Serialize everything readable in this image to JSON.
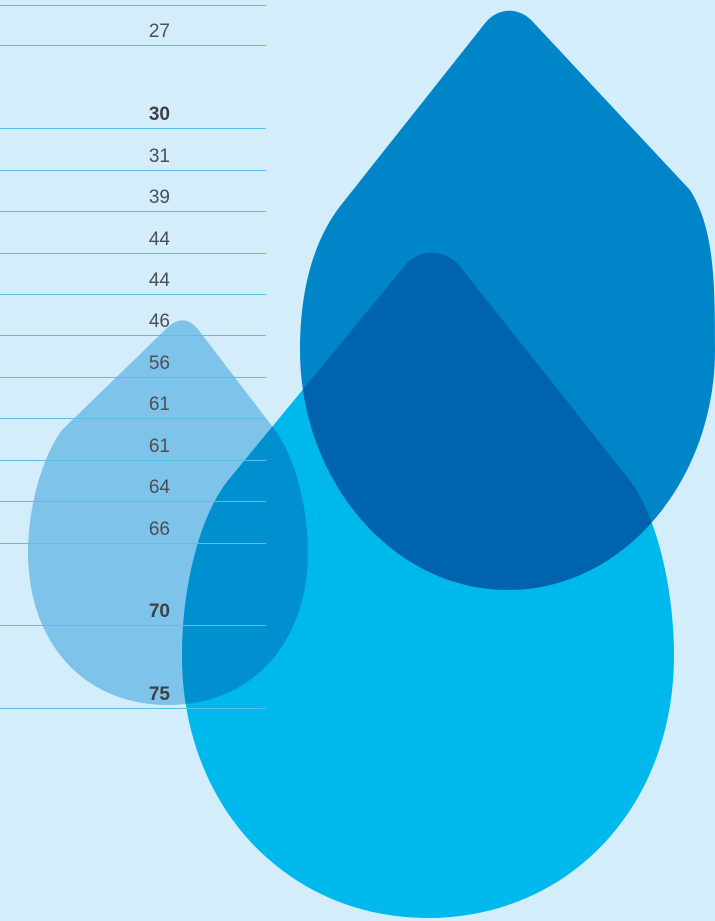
{
  "table": {
    "rows": [
      {
        "value": "27",
        "bold": false
      },
      {
        "value": "30",
        "bold": true
      },
      {
        "value": "31",
        "bold": false
      },
      {
        "value": "39",
        "bold": false
      },
      {
        "value": "44",
        "bold": false
      },
      {
        "value": "44",
        "bold": false
      },
      {
        "value": "46",
        "bold": false
      },
      {
        "value": "56",
        "bold": false
      },
      {
        "value": "61",
        "bold": false
      },
      {
        "value": "61",
        "bold": false
      },
      {
        "value": "64",
        "bold": false
      },
      {
        "value": "66",
        "bold": false
      },
      {
        "value": "70",
        "bold": true
      },
      {
        "value": "75",
        "bold": true
      }
    ]
  },
  "drops": {
    "colors": {
      "background": "#d3edfa",
      "small_drop": "#7ec3ea",
      "large_drop": "#00b9ec",
      "top_drop": "#0086c8",
      "overlap_large_top": "#0063ad",
      "overlap_small_large": "#0090d0"
    }
  }
}
